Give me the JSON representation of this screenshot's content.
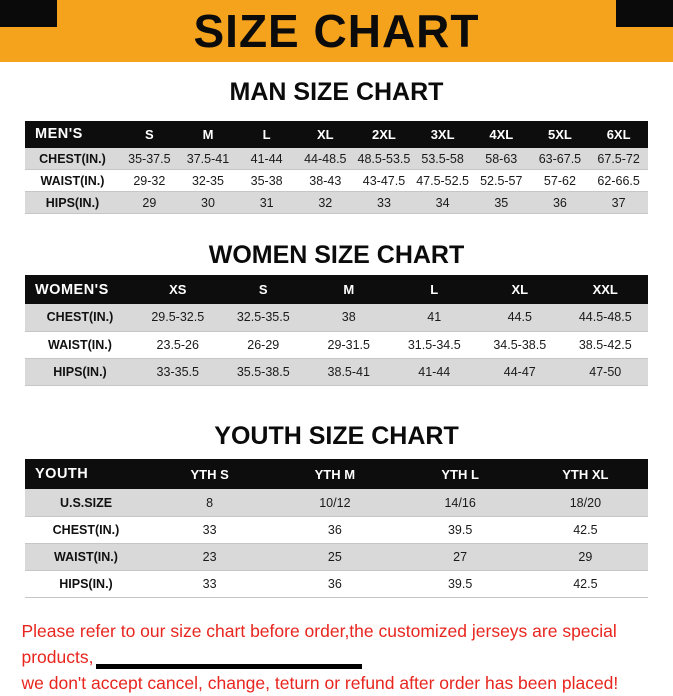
{
  "banner": {
    "title": "SIZE CHART",
    "bg_color": "#F5A21C",
    "corner_color": "#0A0A0A"
  },
  "sections": [
    {
      "id": "men",
      "title": "MAN SIZE CHART",
      "table": {
        "header": [
          "MEN'S",
          "S",
          "M",
          "L",
          "XL",
          "2XL",
          "3XL",
          "4XL",
          "5XL",
          "6XL"
        ],
        "rows": [
          {
            "label": "CHEST(IN.)",
            "values": [
              "35-37.5",
              "37.5-41",
              "41-44",
              "44-48.5",
              "48.5-53.5",
              "53.5-58",
              "58-63",
              "63-67.5",
              "67.5-72"
            ]
          },
          {
            "label": "WAIST(IN.)",
            "values": [
              "29-32",
              "32-35",
              "35-38",
              "38-43",
              "43-47.5",
              "47.5-52.5",
              "52.5-57",
              "57-62",
              "62-66.5"
            ]
          },
          {
            "label": "HIPS(IN.)",
            "values": [
              "29",
              "30",
              "31",
              "32",
              "33",
              "34",
              "35",
              "36",
              "37"
            ]
          }
        ]
      }
    },
    {
      "id": "women",
      "title": "WOMEN SIZE CHART",
      "table": {
        "header": [
          "WOMEN'S",
          "XS",
          "S",
          "M",
          "L",
          "XL",
          "XXL"
        ],
        "rows": [
          {
            "label": "CHEST(IN.)",
            "values": [
              "29.5-32.5",
              "32.5-35.5",
              "38",
              "41",
              "44.5",
              "44.5-48.5"
            ]
          },
          {
            "label": "WAIST(IN.)",
            "values": [
              "23.5-26",
              "26-29",
              "29-31.5",
              "31.5-34.5",
              "34.5-38.5",
              "38.5-42.5"
            ]
          },
          {
            "label": "HIPS(IN.)",
            "values": [
              "33-35.5",
              "35.5-38.5",
              "38.5-41",
              "41-44",
              "44-47",
              "47-50"
            ]
          }
        ]
      }
    },
    {
      "id": "youth",
      "title": "YOUTH SIZE CHART",
      "table": {
        "header": [
          "YOUTH",
          "YTH S",
          "YTH M",
          "YTH L",
          "YTH XL"
        ],
        "rows": [
          {
            "label": "U.S.SIZE",
            "values": [
              "8",
              "10/12",
              "14/16",
              "18/20"
            ]
          },
          {
            "label": "CHEST(IN.)",
            "values": [
              "33",
              "36",
              "39.5",
              "42.5"
            ]
          },
          {
            "label": "WAIST(IN.)",
            "values": [
              "23",
              "25",
              "27",
              "29"
            ]
          },
          {
            "label": "HIPS(IN.)",
            "values": [
              "33",
              "36",
              "39.5",
              "42.5"
            ]
          }
        ]
      }
    }
  ],
  "footer": {
    "line1": "Please refer to our size chart before order,the customized jerseys are special products,",
    "line2": "we don't accept cancel, change, teturn or refund after order has been placed!",
    "text_color": "#E8251E"
  }
}
